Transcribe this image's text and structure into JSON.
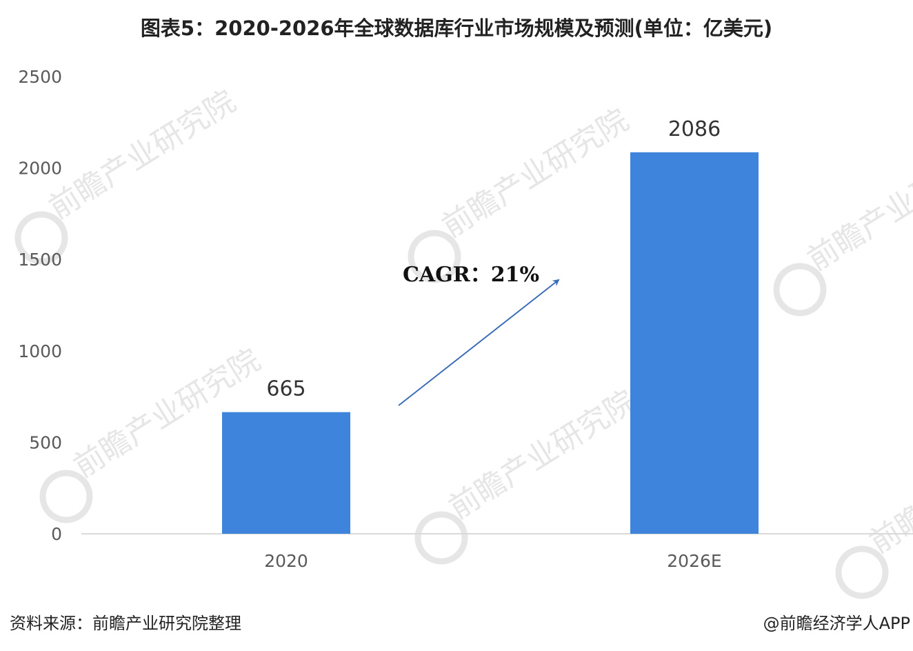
{
  "header": {
    "title": "图表5：2020-2026年全球数据库行业市场规模及预测(单位：亿美元)"
  },
  "footer": {
    "source": "资料来源：前瞻产业研究院整理",
    "credit": "@前瞻经济学人APP"
  },
  "watermark": {
    "text": "前瞻产业研究院",
    "logo_icon": "qianzhan-logo-icon"
  },
  "colors": {
    "bar": "#3f84dc",
    "arrow": "#3b6db6",
    "axis": "#d9d9d9",
    "tick_text": "#595959",
    "watermark": "#e6e6e6"
  },
  "chart_data": {
    "type": "bar",
    "title": "图表5：2020-2026年全球数据库行业市场规模及预测(单位：亿美元)",
    "categories": [
      "2020",
      "2026E"
    ],
    "values": [
      665,
      2086
    ],
    "data_labels": [
      "665",
      "2086"
    ],
    "ylim": [
      0,
      2500
    ],
    "yticks": [
      0,
      500,
      1000,
      1500,
      2000,
      2500
    ],
    "grid": false,
    "legend": "none",
    "annotation": {
      "text": "CAGR：21%",
      "shape": "arrow pointing up-right between bars"
    }
  }
}
